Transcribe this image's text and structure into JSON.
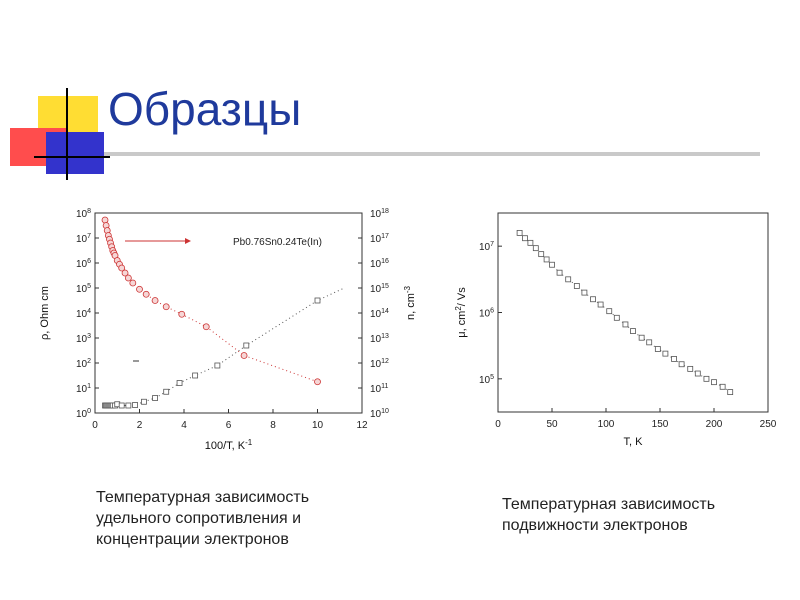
{
  "title": "Образцы",
  "colors": {
    "title": "#1f3a9c",
    "circles": "#cc3333",
    "squares": "#555555"
  },
  "chart_data": [
    {
      "type": "scatter",
      "xlabel": "100/T, K",
      "xlabel_sup": "-1",
      "ylabel_left": "ρ, Ohm cm",
      "ylabel_right": "n, cm",
      "ylabel_right_sup": "-3",
      "annotation": "Pb0.76Sn0.24Te(In)",
      "xlim": [
        0,
        12
      ],
      "ylim_left_exp": [
        0,
        8
      ],
      "ylim_right_exp": [
        10,
        18
      ],
      "x_ticks": [
        "0",
        "2",
        "4",
        "6",
        "8",
        "10",
        "12"
      ],
      "left_tick_exps": [
        0,
        1,
        2,
        3,
        4,
        5,
        6,
        7,
        8
      ],
      "right_tick_exps": [
        10,
        11,
        12,
        13,
        14,
        15,
        16,
        17,
        18
      ],
      "series": [
        {
          "axis": "left",
          "marker": "circle",
          "x": [
            0.45,
            0.5,
            0.55,
            0.6,
            0.65,
            0.7,
            0.75,
            0.8,
            0.85,
            0.9,
            1.0,
            1.1,
            1.2,
            1.35,
            1.5,
            1.7,
            2.0,
            2.3,
            2.7,
            3.2,
            3.9,
            5.0,
            6.7,
            10.0
          ],
          "log_y": [
            7.72,
            7.5,
            7.3,
            7.1,
            6.95,
            6.8,
            6.65,
            6.5,
            6.4,
            6.3,
            6.1,
            5.95,
            5.8,
            5.6,
            5.4,
            5.2,
            4.95,
            4.75,
            4.5,
            4.25,
            3.95,
            3.45,
            2.3,
            1.25
          ]
        },
        {
          "axis": "left",
          "marker": "square",
          "x": [
            0.45,
            0.5,
            0.55,
            0.6,
            0.65,
            0.7,
            0.75,
            0.8,
            0.9,
            1.0,
            1.2,
            1.5,
            1.8,
            2.2,
            2.7,
            3.2,
            3.8,
            4.5,
            5.5,
            6.8,
            10.0
          ],
          "log_y": [
            0.3,
            0.3,
            0.3,
            0.3,
            0.3,
            0.3,
            0.3,
            0.3,
            0.3,
            0.35,
            0.3,
            0.3,
            0.32,
            0.45,
            0.6,
            0.85,
            1.2,
            1.5,
            1.9,
            2.7,
            4.5
          ]
        }
      ]
    },
    {
      "type": "scatter",
      "xlabel": "T, K",
      "ylabel": "μ, cm",
      "ylabel_sup": "2",
      "ylabel_suffix": "/ Vs",
      "xlim": [
        0,
        250
      ],
      "ylim_exp": [
        4.5,
        7.5
      ],
      "x_ticks": [
        "0",
        "50",
        "100",
        "150",
        "200",
        "250"
      ],
      "y_tick_exps": [
        5,
        6,
        7
      ],
      "series": [
        {
          "marker": "square",
          "x": [
            20,
            25,
            30,
            35,
            40,
            45,
            50,
            57,
            65,
            73,
            80,
            88,
            95,
            103,
            110,
            118,
            125,
            133,
            140,
            148,
            155,
            163,
            170,
            178,
            185,
            193,
            200,
            208,
            215
          ],
          "log_y": [
            7.2,
            7.12,
            7.05,
            6.97,
            6.88,
            6.8,
            6.72,
            6.6,
            6.5,
            6.4,
            6.3,
            6.2,
            6.12,
            6.02,
            5.92,
            5.82,
            5.72,
            5.62,
            5.55,
            5.45,
            5.38,
            5.3,
            5.22,
            5.15,
            5.08,
            5.0,
            4.95,
            4.88,
            4.8
          ]
        }
      ]
    }
  ],
  "captions": {
    "left": [
      "Температурная зависимость",
      "удельного сопротивления и",
      "концентрации электронов"
    ],
    "right": [
      "Температурная зависимость",
      "подвижности электронов"
    ]
  }
}
